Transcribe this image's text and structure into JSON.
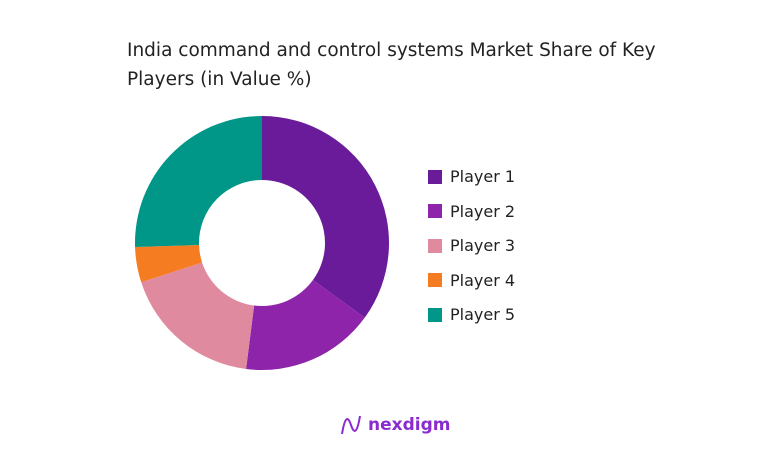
{
  "chart_data": {
    "type": "pie",
    "donut": true,
    "title": "India command and control systems Market Share of Key Players (in Value %)",
    "categories": [
      "Player 1",
      "Player 2",
      "Player 3",
      "Player 4",
      "Player 5"
    ],
    "values": [
      35,
      17,
      18,
      4.5,
      25.5
    ],
    "colors": [
      "#6a1b9a",
      "#8e24aa",
      "#e08aa0",
      "#f57c20",
      "#009688"
    ],
    "legend": "right"
  },
  "logo": {
    "text": "nexdigm"
  }
}
